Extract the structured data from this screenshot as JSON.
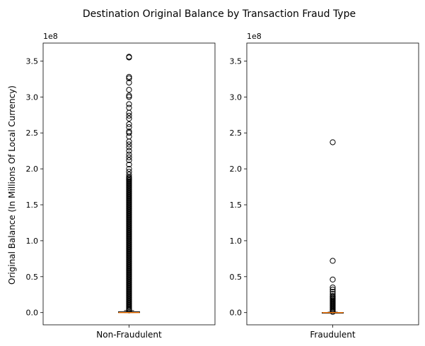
{
  "chart_data": {
    "type": "boxplot",
    "title": "Destination Original Balance by Transaction Fraud Type",
    "ylabel": "Original Balance (In Millions Of Local Currency)",
    "y_offset_label": "1e8",
    "ylim": [
      -0.17,
      3.75
    ],
    "y_ticks": [
      0.0,
      0.5,
      1.0,
      1.5,
      2.0,
      2.5,
      3.0,
      3.5
    ],
    "y_tick_labels": [
      "0.0",
      "0.5",
      "1.0",
      "1.5",
      "2.0",
      "2.5",
      "3.0",
      "3.5"
    ],
    "panels": [
      {
        "category": "Non-Fraudulent",
        "median": 0.0,
        "q1": 0.0,
        "q3": 0.011,
        "whisker_low": 0.0,
        "whisker_high": 0.028,
        "outliers_dense_range": [
          0.03,
          1.9
        ],
        "outliers": [
          3.56,
          3.55,
          3.28,
          3.26,
          3.2,
          3.1,
          3.02,
          3.0,
          2.9,
          2.85,
          2.78,
          2.74,
          2.7,
          2.62,
          2.58,
          2.52,
          2.5,
          2.45,
          2.38,
          2.34,
          2.3,
          2.25,
          2.2,
          2.16,
          2.12,
          2.06,
          2.0,
          1.96,
          1.92
        ]
      },
      {
        "category": "Fraudulent",
        "median": 0.0,
        "q1": 0.0,
        "q3": 0.002,
        "whisker_low": 0.0,
        "whisker_high": 0.006,
        "outliers_dense_range": [
          0.01,
          0.24
        ],
        "outliers": [
          2.37,
          0.72,
          0.46,
          0.35,
          0.32,
          0.29,
          0.26
        ]
      }
    ],
    "colors": {
      "median": "#ff7f0e",
      "box": "#000000",
      "flier": "#000000"
    }
  }
}
